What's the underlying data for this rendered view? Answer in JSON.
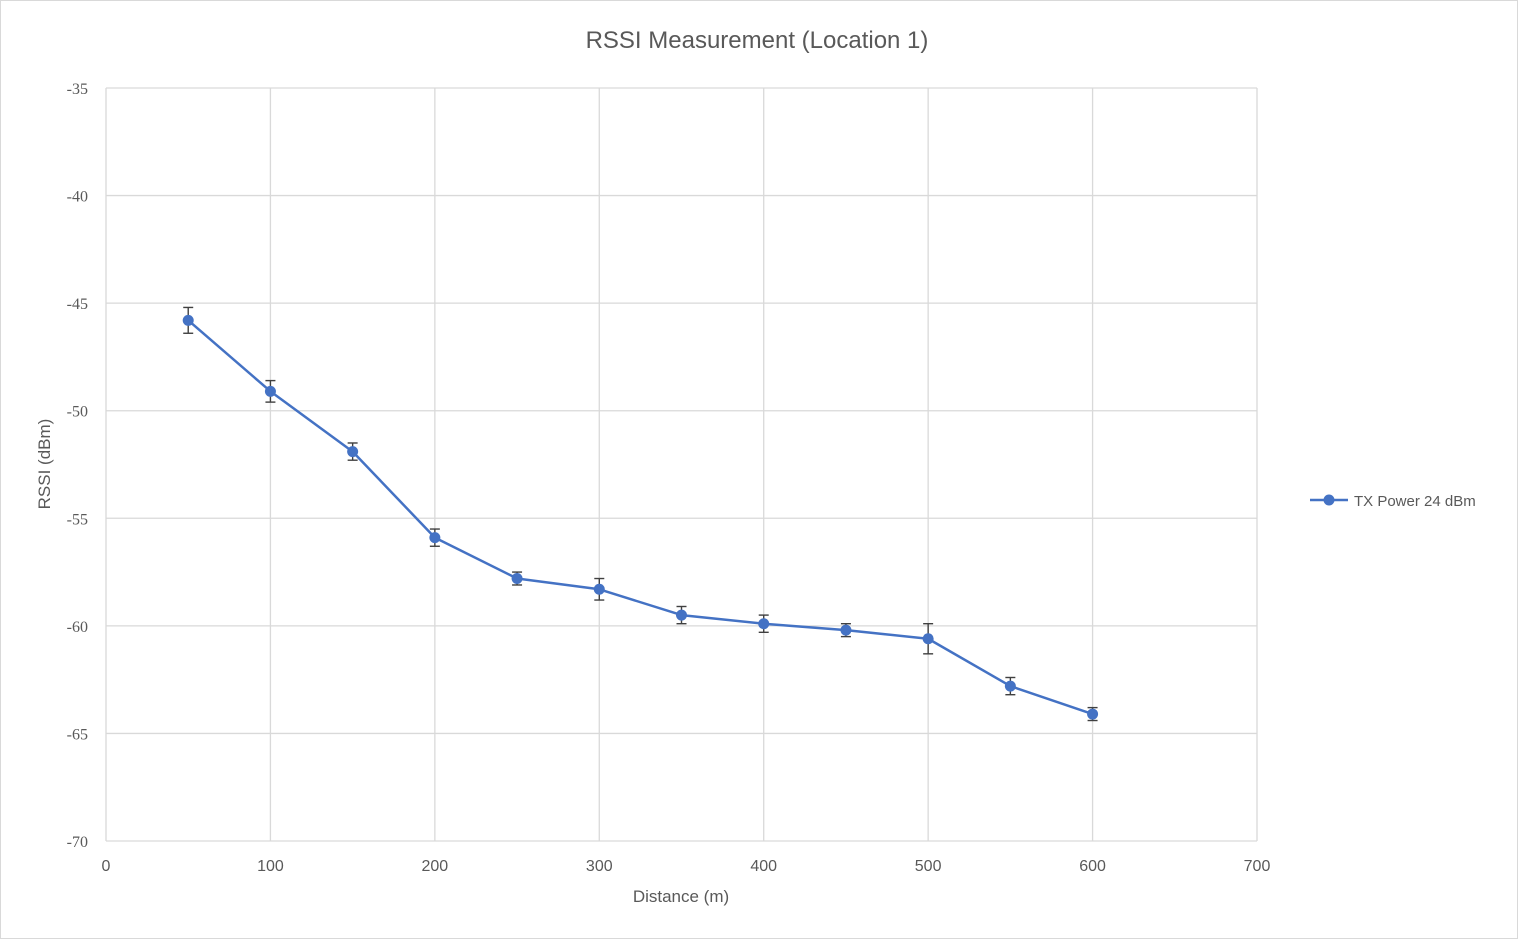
{
  "chart_data": {
    "type": "line",
    "title": "RSSI Measurement (Location 1)",
    "xlabel": "Distance (m)",
    "ylabel": "RSSI (dBm)",
    "xlim": [
      0,
      700
    ],
    "ylim": [
      -70,
      -35
    ],
    "x_ticks": [
      0,
      100,
      200,
      300,
      400,
      500,
      600,
      700
    ],
    "y_ticks": [
      -35,
      -40,
      -45,
      -50,
      -55,
      -60,
      -65,
      -70
    ],
    "grid": true,
    "legend_position": "right",
    "series": [
      {
        "name": "TX Power 24 dBm",
        "color": "#4472c4",
        "marker": "circle",
        "x": [
          50,
          100,
          150,
          200,
          250,
          300,
          350,
          400,
          450,
          500,
          550,
          600
        ],
        "y": [
          -45.8,
          -49.1,
          -51.9,
          -55.9,
          -57.8,
          -58.3,
          -59.5,
          -59.9,
          -60.2,
          -60.6,
          -62.8,
          -64.1
        ],
        "error": [
          0.6,
          0.5,
          0.4,
          0.4,
          0.3,
          0.5,
          0.4,
          0.4,
          0.3,
          0.7,
          0.4,
          0.3
        ]
      }
    ]
  },
  "colors": {
    "grid": "#d9d9d9",
    "text": "#595959",
    "error_bar": "#404040"
  }
}
